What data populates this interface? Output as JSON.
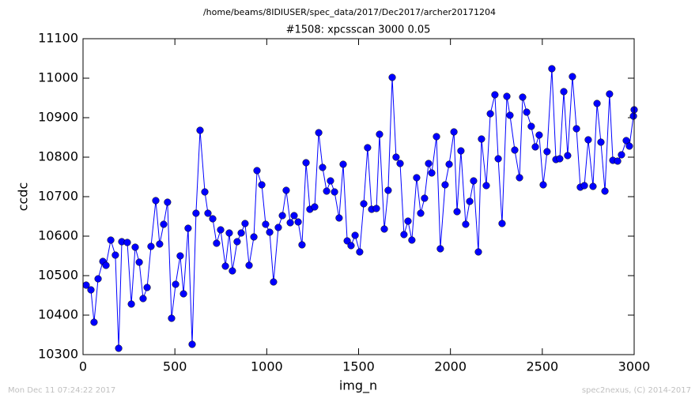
{
  "header": {
    "path": "/home/beams/8IDIUSER/spec_data/2017/Dec2017/archer20171204"
  },
  "footer": {
    "left": "Mon Dec 11 07:24:22 2017",
    "right": "spec2nexus, (C) 2014-2017"
  },
  "chart_data": {
    "type": "line",
    "title": "#1508: xpcsscan 3000 0.05",
    "x_label": "img_n",
    "y_label": "ccdc",
    "xlim": [
      0,
      3000
    ],
    "xticks": [
      0,
      500,
      1000,
      1500,
      2000,
      2500,
      3000
    ],
    "ylim": [
      10300,
      11100
    ],
    "yticks": [
      10300,
      10400,
      10500,
      10600,
      10700,
      10800,
      10900,
      11000,
      11100
    ],
    "x": [
      17,
      43,
      60,
      82,
      108,
      125,
      151,
      176,
      194,
      211,
      241,
      263,
      284,
      306,
      327,
      349,
      370,
      396,
      417,
      439,
      460,
      482,
      504,
      529,
      547,
      572,
      594,
      615,
      637,
      663,
      680,
      706,
      727,
      749,
      775,
      796,
      813,
      839,
      861,
      882,
      904,
      930,
      947,
      973,
      994,
      1016,
      1037,
      1063,
      1085,
      1106,
      1128,
      1149,
      1171,
      1192,
      1214,
      1235,
      1261,
      1283,
      1304,
      1326,
      1347,
      1369,
      1394,
      1416,
      1438,
      1459,
      1481,
      1506,
      1528,
      1549,
      1571,
      1597,
      1614,
      1640,
      1661,
      1683,
      1704,
      1726,
      1747,
      1769,
      1790,
      1816,
      1838,
      1859,
      1881,
      1898,
      1924,
      1945,
      1971,
      1993,
      2019,
      2036,
      2057,
      2083,
      2105,
      2126,
      2152,
      2169,
      2195,
      2217,
      2242,
      2260,
      2281,
      2307,
      2324,
      2350,
      2376,
      2393,
      2415,
      2440,
      2462,
      2483,
      2505,
      2526,
      2552,
      2574,
      2595,
      2617,
      2638,
      2664,
      2686,
      2707,
      2729,
      2750,
      2776,
      2798,
      2819,
      2841,
      2866,
      2884,
      2910,
      2931,
      2957,
      2974,
      2996,
      3000
    ],
    "series": [
      {
        "name": "ccdc",
        "color": "#0000ff",
        "values": [
          10476,
          10464,
          10382,
          10492,
          10536,
          10526,
          10590,
          10552,
          10316,
          10586,
          10584,
          10428,
          10572,
          10534,
          10442,
          10470,
          10574,
          10690,
          10580,
          10630,
          10686,
          10392,
          10478,
          10550,
          10454,
          10620,
          10326,
          10658,
          10868,
          10712,
          10658,
          10644,
          10582,
          10616,
          10524,
          10608,
          10512,
          10586,
          10608,
          10632,
          10526,
          10598,
          10766,
          10730,
          10630,
          10610,
          10484,
          10622,
          10652,
          10716,
          10634,
          10652,
          10636,
          10578,
          10786,
          10668,
          10674,
          10862,
          10774,
          10714,
          10740,
          10712,
          10646,
          10782,
          10588,
          10576,
          10602,
          10560,
          10682,
          10824,
          10668,
          10670,
          10858,
          10618,
          10716,
          11002,
          10800,
          10784,
          10604,
          10638,
          10590,
          10748,
          10658,
          10696,
          10784,
          10760,
          10852,
          10568,
          10730,
          10782,
          10864,
          10662,
          10816,
          10630,
          10688,
          10740,
          10560,
          10846,
          10728,
          10910,
          10958,
          10796,
          10632,
          10954,
          10906,
          10818,
          10748,
          10952,
          10914,
          10878,
          10826,
          10856,
          10730,
          10814,
          11024,
          10794,
          10796,
          10966,
          10804,
          11004,
          10872,
          10724,
          10728,
          10844,
          10726,
          10936,
          10838,
          10714,
          10960,
          10792,
          10790,
          10806,
          10842,
          10828,
          10904,
          10920
        ]
      }
    ]
  }
}
